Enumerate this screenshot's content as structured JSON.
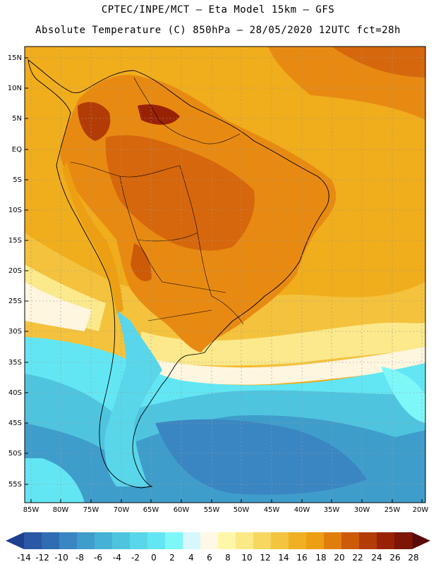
{
  "header": {
    "line1": "CPTEC/INPE/MCT –  Eta Model 15km – GFS",
    "line2": "Absolute Temperature (C) 850hPa – 28/05/2020 12UTC fct=28h"
  },
  "map": {
    "lat_labels": [
      "15N",
      "10N",
      "5N",
      "EQ",
      "5S",
      "10S",
      "15S",
      "20S",
      "25S",
      "30S",
      "35S",
      "40S",
      "45S",
      "50S",
      "55S"
    ],
    "lon_labels": [
      "85W",
      "80W",
      "75W",
      "70W",
      "65W",
      "60W",
      "55W",
      "50W",
      "45W",
      "40W",
      "35W",
      "30W",
      "25W",
      "20W"
    ]
  },
  "colorbar": {
    "labels": [
      "-14",
      "-12",
      "-10",
      "-8",
      "-6",
      "-4",
      "-2",
      "0",
      "2",
      "4",
      "6",
      "8",
      "10",
      "12",
      "14",
      "16",
      "18",
      "20",
      "22",
      "24",
      "26",
      "28"
    ],
    "colors": [
      "#1f3f8f",
      "#2b57a6",
      "#2f6db3",
      "#3a86c2",
      "#3f9dcb",
      "#46b1d6",
      "#4fc4df",
      "#5ad6ea",
      "#63e6f3",
      "#7ef7f9",
      "#d6f7fb",
      "#fff8e6",
      "#fff7a8",
      "#fbe986",
      "#f7d75f",
      "#f2c43f",
      "#f0b021",
      "#ed9f14",
      "#e07e0c",
      "#cc5a07",
      "#b33c06",
      "#9a2204",
      "#7d1605",
      "#5a0a09"
    ]
  },
  "colors": {
    "ocean_tropical": "#f0ad1c",
    "land_hot": "#d6670c",
    "land_warm": "#e88a12",
    "cold_ocean": "#3fb1d3",
    "coldest": "#2f8fc0"
  }
}
